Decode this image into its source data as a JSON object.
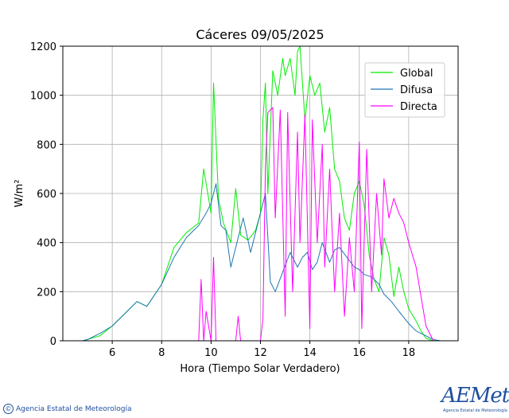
{
  "footer": {
    "copyright_symbol": "©",
    "agency": "Agencia Estatal de Meteorología"
  },
  "logo": {
    "brand": "AEMet",
    "tagline": "Agencia Estatal de Meteorología",
    "color": "#1f4fa0"
  },
  "chart_data": {
    "type": "line",
    "title": "Cáceres 09/05/2025",
    "xlabel": "Hora (Tiempo Solar Verdadero)",
    "ylabel": "W/m²",
    "xlim": [
      4,
      20
    ],
    "ylim": [
      0,
      1200
    ],
    "xticks": [
      6,
      8,
      10,
      12,
      14,
      16,
      18
    ],
    "yticks": [
      0,
      200,
      400,
      600,
      800,
      1000,
      1200
    ],
    "grid": true,
    "legend": "top-right",
    "series": [
      {
        "name": "Global",
        "color": "#00ee00",
        "x": [
          4.8,
          5.5,
          6.0,
          6.5,
          7.0,
          7.4,
          8.0,
          8.5,
          9.0,
          9.5,
          9.7,
          10.0,
          10.1,
          10.3,
          10.5,
          10.8,
          11.0,
          11.2,
          11.5,
          11.8,
          12.0,
          12.1,
          12.2,
          12.3,
          12.5,
          12.7,
          12.9,
          13.0,
          13.2,
          13.4,
          13.5,
          13.6,
          13.8,
          14.0,
          14.2,
          14.4,
          14.6,
          14.8,
          15.0,
          15.2,
          15.4,
          15.6,
          15.8,
          16.0,
          16.2,
          16.4,
          16.6,
          16.8,
          17.0,
          17.2,
          17.4,
          17.6,
          17.8,
          18.0,
          18.3,
          18.5,
          18.7,
          19.0,
          19.3,
          19.6,
          20.0
        ],
        "y": [
          0,
          20,
          60,
          110,
          160,
          140,
          230,
          380,
          440,
          480,
          700,
          520,
          1050,
          580,
          480,
          400,
          620,
          430,
          410,
          450,
          520,
          900,
          1050,
          600,
          1100,
          1000,
          1150,
          1080,
          1150,
          1000,
          1180,
          1200,
          900,
          1080,
          1000,
          1050,
          850,
          950,
          700,
          650,
          500,
          450,
          600,
          650,
          550,
          350,
          250,
          200,
          420,
          350,
          180,
          300,
          200,
          130,
          80,
          40,
          10,
          0,
          0,
          0,
          0
        ]
      },
      {
        "name": "Difusa",
        "color": "#1f77b4",
        "x": [
          4.8,
          5.0,
          5.5,
          6.0,
          6.5,
          7.0,
          7.4,
          8.0,
          8.5,
          9.0,
          9.5,
          9.8,
          10.0,
          10.2,
          10.4,
          10.6,
          10.8,
          11.0,
          11.3,
          11.6,
          11.9,
          12.1,
          12.2,
          12.4,
          12.6,
          12.9,
          13.2,
          13.5,
          13.7,
          13.9,
          14.1,
          14.3,
          14.5,
          14.8,
          15.0,
          15.2,
          15.5,
          15.8,
          16.0,
          16.2,
          16.5,
          16.8,
          17.0,
          17.3,
          17.6,
          18.0,
          18.3,
          18.7,
          19.0,
          19.3,
          20.0
        ],
        "y": [
          0,
          5,
          30,
          60,
          110,
          160,
          140,
          230,
          340,
          420,
          470,
          520,
          560,
          640,
          470,
          450,
          300,
          380,
          500,
          360,
          480,
          560,
          600,
          240,
          200,
          280,
          360,
          300,
          340,
          360,
          290,
          320,
          400,
          320,
          370,
          380,
          340,
          300,
          290,
          270,
          260,
          230,
          190,
          160,
          120,
          70,
          40,
          20,
          5,
          0,
          0
        ]
      },
      {
        "name": "Directa",
        "color": "#ff00ff",
        "x": [
          4.8,
          9.5,
          9.6,
          9.7,
          9.8,
          10.0,
          10.1,
          10.2,
          10.5,
          11.0,
          11.1,
          11.2,
          11.5,
          12.0,
          12.1,
          12.2,
          12.3,
          12.5,
          12.6,
          12.8,
          13.0,
          13.1,
          13.3,
          13.5,
          13.6,
          13.8,
          14.0,
          14.1,
          14.3,
          14.5,
          14.6,
          14.8,
          15.0,
          15.2,
          15.4,
          15.6,
          15.8,
          16.0,
          16.1,
          16.3,
          16.5,
          16.7,
          16.9,
          17.0,
          17.2,
          17.4,
          17.6,
          17.8,
          18.0,
          18.3,
          18.5,
          18.7,
          19.0,
          20.0
        ],
        "y": [
          0,
          0,
          250,
          0,
          120,
          0,
          340,
          0,
          0,
          0,
          100,
          0,
          0,
          0,
          90,
          700,
          930,
          950,
          500,
          940,
          100,
          930,
          200,
          850,
          400,
          920,
          50,
          900,
          400,
          800,
          300,
          700,
          200,
          520,
          100,
          420,
          200,
          810,
          50,
          780,
          200,
          600,
          350,
          660,
          500,
          580,
          520,
          480,
          400,
          300,
          180,
          60,
          0,
          0
        ]
      }
    ]
  }
}
